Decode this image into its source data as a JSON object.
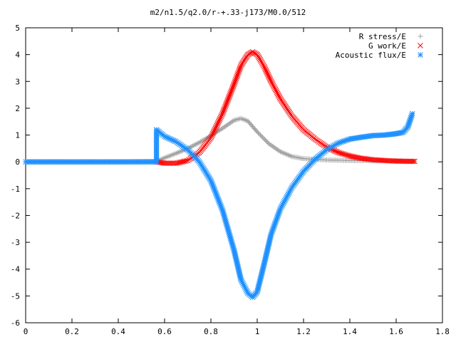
{
  "chart_data": {
    "type": "scatter",
    "title": "m2/n1.5/q2.0/r-+.33-j173/M0.0/512",
    "xlabel": "",
    "ylabel": "",
    "xlim": [
      0,
      1.8
    ],
    "ylim": [
      -6,
      5
    ],
    "x_ticks": [
      "0",
      "0.2",
      "0.4",
      "0.6",
      "0.8",
      "1",
      "1.2",
      "1.4",
      "1.6",
      "1.8"
    ],
    "y_ticks": [
      "5",
      "4",
      "3",
      "2",
      "1",
      "0",
      "-1",
      "-2",
      "-3",
      "-4",
      "-5",
      "-6"
    ],
    "grid": false,
    "legend_position": "top-right",
    "series": [
      {
        "name": "R stress/E",
        "marker": "plus",
        "color": "#a0a0a0",
        "x": [
          0.0,
          0.2,
          0.4,
          0.565,
          0.6,
          0.65,
          0.7,
          0.75,
          0.8,
          0.85,
          0.9,
          0.93,
          0.96,
          1.0,
          1.05,
          1.1,
          1.15,
          1.2,
          1.3,
          1.4,
          1.5,
          1.6,
          1.68
        ],
        "y": [
          0,
          0,
          0,
          0.02,
          0.15,
          0.32,
          0.5,
          0.72,
          0.98,
          1.25,
          1.55,
          1.62,
          1.52,
          1.12,
          0.68,
          0.38,
          0.2,
          0.12,
          0.07,
          0.05,
          0.04,
          0.03,
          0.02
        ]
      },
      {
        "name": "G work/E",
        "marker": "cross",
        "color": "#ff0000",
        "x": [
          0.565,
          0.6,
          0.65,
          0.7,
          0.75,
          0.8,
          0.85,
          0.9,
          0.93,
          0.96,
          0.98,
          1.0,
          1.03,
          1.06,
          1.1,
          1.15,
          1.2,
          1.25,
          1.3,
          1.35,
          1.4,
          1.45,
          1.5,
          1.55,
          1.6,
          1.65,
          1.68
        ],
        "y": [
          0.0,
          -0.05,
          -0.05,
          0.05,
          0.35,
          0.9,
          1.8,
          2.9,
          3.6,
          4.0,
          4.1,
          4.0,
          3.55,
          3.0,
          2.35,
          1.7,
          1.2,
          0.85,
          0.55,
          0.35,
          0.22,
          0.13,
          0.08,
          0.05,
          0.03,
          0.02,
          0.02
        ]
      },
      {
        "name": "Acoustic flux/E",
        "marker": "star",
        "color": "#1e90ff",
        "x": [
          0.0,
          0.2,
          0.4,
          0.565,
          0.565,
          0.6,
          0.65,
          0.7,
          0.75,
          0.8,
          0.85,
          0.9,
          0.93,
          0.96,
          0.98,
          1.0,
          1.03,
          1.06,
          1.1,
          1.15,
          1.2,
          1.25,
          1.3,
          1.35,
          1.4,
          1.45,
          1.5,
          1.55,
          1.6,
          1.63,
          1.65,
          1.67
        ],
        "y": [
          0,
          0,
          0,
          0,
          1.2,
          0.95,
          0.75,
          0.45,
          0.0,
          -0.7,
          -1.8,
          -3.3,
          -4.4,
          -4.9,
          -5.05,
          -4.85,
          -3.8,
          -2.7,
          -1.75,
          -0.95,
          -0.35,
          0.1,
          0.45,
          0.7,
          0.85,
          0.92,
          0.98,
          1.0,
          1.05,
          1.1,
          1.3,
          1.8
        ]
      }
    ]
  }
}
